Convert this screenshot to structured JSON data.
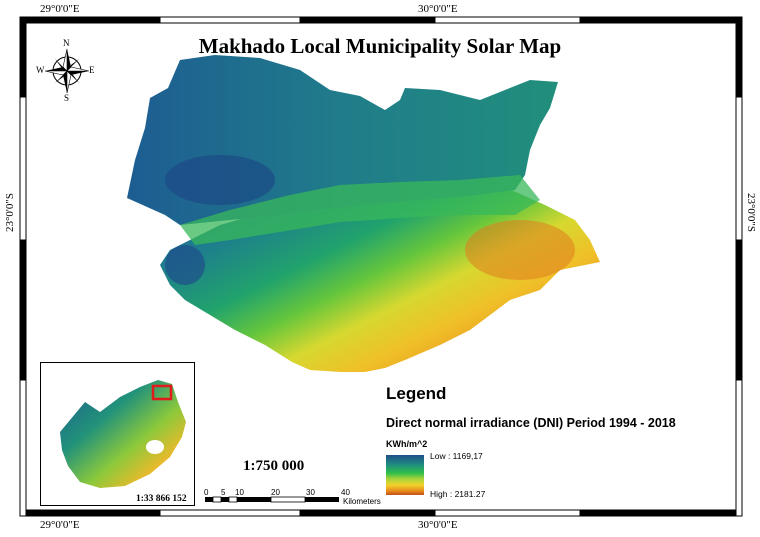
{
  "map": {
    "title": "Makhado Local Municipality Solar Map",
    "coords": {
      "top_left": "29°0'0\"E",
      "top_right": "30°0'0\"E",
      "bottom_left": "29°0'0\"E",
      "bottom_right": "30°0'0\"E",
      "left": "23°0'0\"S",
      "right": "23°0'0\"S"
    },
    "north_arrow": {
      "n": "N",
      "s": "S",
      "e": "E",
      "w": "W",
      "icon": "compass-rose-icon"
    },
    "legend": {
      "title": "Legend",
      "subtitle": "Direct normal irradiance (DNI) Period 1994 - 2018",
      "unit": "KWh/m^2",
      "low": "Low : 1169,17",
      "high": "High : 2181.27",
      "low_value": 1169.17,
      "high_value": 2181.27,
      "ramp_colors": [
        "#1f4f8a",
        "#1f8f7f",
        "#2fbf4a",
        "#a8d43a",
        "#f2d22a",
        "#e88a1e",
        "#c0501a"
      ]
    },
    "scale_text": "1:750 000",
    "inset_scale_text": "1:33 866 152",
    "scalebar": {
      "ticks": [
        "0",
        "5",
        "10",
        "20",
        "30",
        "40"
      ],
      "unit": "Kilometers"
    },
    "colors": {
      "frame": "#000000",
      "inset_highlight": "#e01b1b",
      "low_dni": "#1f4f8a",
      "high_dni": "#c0501a"
    }
  }
}
